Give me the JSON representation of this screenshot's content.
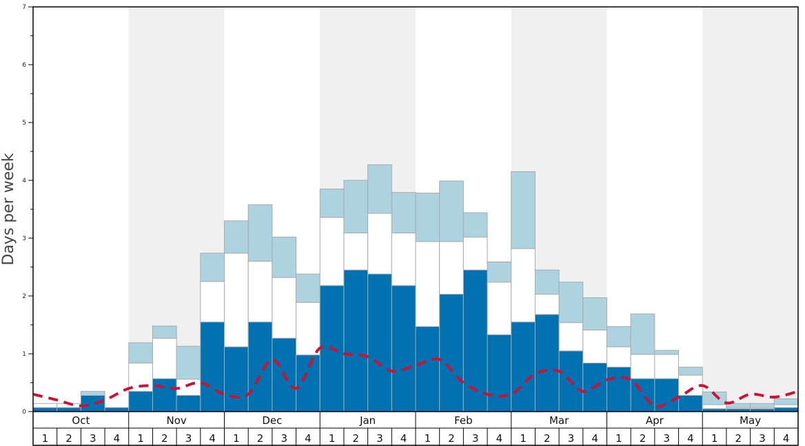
{
  "chart_data": {
    "type": "bar",
    "ylabel": "Days per week",
    "ylim": [
      0,
      7
    ],
    "y_ticks": [
      "0",
      "1",
      "2",
      "3",
      "4",
      "5",
      "6",
      "7"
    ],
    "months": [
      "Oct",
      "Nov",
      "Dec",
      "Jan",
      "Feb",
      "Mar",
      "Apr",
      "May"
    ],
    "week_labels": [
      "1",
      "2",
      "3",
      "4"
    ],
    "colors": {
      "series1": "#0072b2",
      "series2": "#ffffff",
      "series3": "#add3e0",
      "line": "#cc1133",
      "band": "#f0f0f0",
      "bar_border": "#aaaaaa"
    },
    "series": [
      {
        "values": [
          0.07,
          0.07,
          0.28,
          0.07,
          0.35,
          0.57,
          0.28,
          1.55,
          1.12,
          1.55,
          1.27,
          0.98,
          2.18,
          2.45,
          2.38,
          2.18,
          1.47,
          2.03,
          2.45,
          1.33,
          1.55,
          1.68,
          1.05,
          0.84,
          0.77,
          0.57,
          0.57,
          0.28,
          0.05,
          0.05,
          0.05,
          0.07
        ]
      },
      {
        "values": [
          0.07,
          0.07,
          0.0,
          0.0,
          0.49,
          0.7,
          0.28,
          0.7,
          1.62,
          1.05,
          1.05,
          0.91,
          1.18,
          0.64,
          1.05,
          0.91,
          1.47,
          0.91,
          0.57,
          0.91,
          1.27,
          0.35,
          0.49,
          0.57,
          0.35,
          0.42,
          0.42,
          0.35,
          0.07,
          0.02,
          0.02,
          0.05
        ]
      },
      {
        "values": [
          0.0,
          0.0,
          0.07,
          0.0,
          0.35,
          0.21,
          0.57,
          0.49,
          0.56,
          0.98,
          0.7,
          0.49,
          0.49,
          0.91,
          0.84,
          0.7,
          0.84,
          1.05,
          0.42,
          0.35,
          1.33,
          0.42,
          0.7,
          0.56,
          0.35,
          0.7,
          0.07,
          0.14,
          0.22,
          0.07,
          0.07,
          0.1
        ]
      }
    ],
    "line": {
      "values": [
        0.3,
        0.2,
        0.1,
        0.2,
        0.4,
        0.45,
        0.4,
        0.5,
        0.3,
        0.3,
        0.9,
        0.4,
        1.1,
        1.0,
        0.95,
        0.7,
        0.8,
        0.9,
        0.5,
        0.3,
        0.3,
        0.65,
        0.7,
        0.35,
        0.55,
        0.55,
        0.1,
        0.25,
        0.45,
        0.15,
        0.3,
        0.25,
        0.35
      ]
    }
  }
}
